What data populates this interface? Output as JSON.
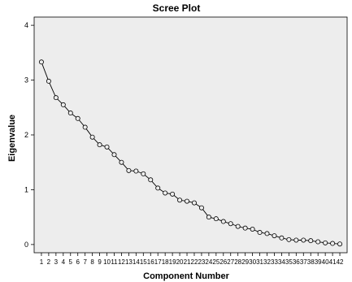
{
  "chart_data": {
    "type": "line",
    "title": "Scree Plot",
    "xlabel": "Component Number",
    "ylabel": "Eigenvalue",
    "x": [
      1,
      2,
      3,
      4,
      5,
      6,
      7,
      8,
      9,
      10,
      11,
      12,
      13,
      14,
      15,
      16,
      17,
      18,
      19,
      20,
      21,
      22,
      23,
      24,
      25,
      26,
      27,
      28,
      29,
      30,
      31,
      32,
      33,
      34,
      35,
      36,
      37,
      38,
      39,
      40,
      41,
      42
    ],
    "x_tick_labels": [
      "1",
      "2",
      "3",
      "4",
      "5",
      "6",
      "7",
      "8",
      "9",
      "10",
      "11",
      "12",
      "13",
      "14",
      "15",
      "16",
      "17",
      "18",
      "19",
      "20",
      "21",
      "22",
      "23",
      "24",
      "25",
      "26",
      "27",
      "28",
      "29",
      "30",
      "31",
      "32",
      "33",
      "34",
      "35",
      "36",
      "37",
      "38",
      "39",
      "40",
      "41",
      "42"
    ],
    "y": [
      3.33,
      2.98,
      2.68,
      2.55,
      2.4,
      2.3,
      2.14,
      1.96,
      1.82,
      1.78,
      1.64,
      1.5,
      1.35,
      1.34,
      1.29,
      1.18,
      1.03,
      0.94,
      0.92,
      0.81,
      0.79,
      0.76,
      0.67,
      0.5,
      0.47,
      0.42,
      0.38,
      0.33,
      0.3,
      0.28,
      0.22,
      0.2,
      0.16,
      0.12,
      0.09,
      0.08,
      0.08,
      0.07,
      0.05,
      0.03,
      0.02,
      0.01
    ],
    "ylim": [
      -0.15,
      4.15
    ],
    "xlim": [
      0,
      43
    ],
    "y_ticks": [
      0,
      1,
      2,
      3,
      4
    ],
    "grid": false,
    "colors": {
      "plot_background": "#ededed",
      "line": "#000000",
      "marker_fill": "#ededed",
      "marker_stroke": "#000000"
    }
  }
}
